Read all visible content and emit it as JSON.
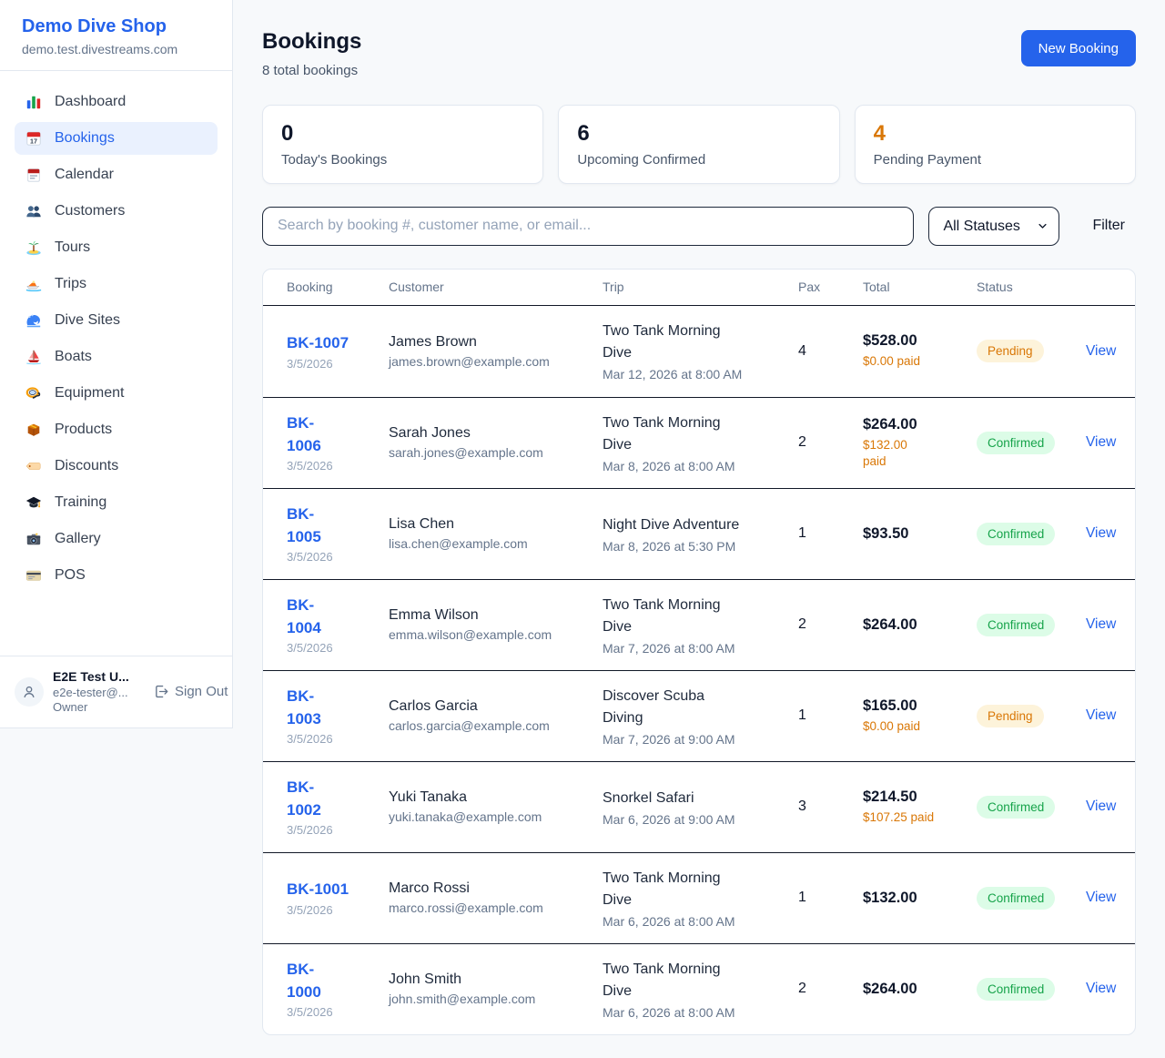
{
  "sidebar": {
    "brand": {
      "name": "Demo Dive Shop",
      "domain": "demo.test.divestreams.com"
    },
    "nav": [
      {
        "label": "Dashboard",
        "icon": "bar-chart",
        "active": false
      },
      {
        "label": "Bookings",
        "icon": "calendar",
        "active": true
      },
      {
        "label": "Calendar",
        "icon": "calendar-pad",
        "active": false
      },
      {
        "label": "Customers",
        "icon": "users",
        "active": false
      },
      {
        "label": "Tours",
        "icon": "island",
        "active": false
      },
      {
        "label": "Trips",
        "icon": "speedboat",
        "active": false
      },
      {
        "label": "Dive Sites",
        "icon": "wave",
        "active": false
      },
      {
        "label": "Boats",
        "icon": "sailboat",
        "active": false
      },
      {
        "label": "Equipment",
        "icon": "diving-mask",
        "active": false
      },
      {
        "label": "Products",
        "icon": "package",
        "active": false
      },
      {
        "label": "Discounts",
        "icon": "tag",
        "active": false
      },
      {
        "label": "Training",
        "icon": "graduation-cap",
        "active": false
      },
      {
        "label": "Gallery",
        "icon": "camera",
        "active": false
      },
      {
        "label": "POS",
        "icon": "credit-card",
        "active": false
      }
    ],
    "user": {
      "name": "E2E Test U...",
      "email": "e2e-tester@...",
      "role": "Owner",
      "sign_out_label": "Sign Out"
    }
  },
  "header": {
    "title": "Bookings",
    "subtitle": "8 total bookings",
    "new_booking_label": "New Booking"
  },
  "stats": [
    {
      "value": "0",
      "label": "Today's Bookings",
      "accent": false
    },
    {
      "value": "6",
      "label": "Upcoming Confirmed",
      "accent": false
    },
    {
      "value": "4",
      "label": "Pending Payment",
      "accent": true
    }
  ],
  "filters": {
    "search_placeholder": "Search by booking #, customer name, or email...",
    "status_selected": "All Statuses",
    "filter_label": "Filter"
  },
  "table": {
    "columns": [
      "Booking",
      "Customer",
      "Trip",
      "Pax",
      "Total",
      "Status"
    ],
    "view_label": "View",
    "rows": [
      {
        "number": "BK-1007",
        "number_display": "BK-1007",
        "date": "3/5/2026",
        "customer": "James Brown",
        "email": "james.brown@example.com",
        "trip": "Two Tank Morning Dive",
        "trip_display": "Two Tank Morning\nDive",
        "trip_date": "Mar 12, 2026 at 8:00 AM",
        "pax": "4",
        "total": "$528.00",
        "paid": "$0.00 paid",
        "paid_display": "$0.00 paid",
        "status": "Pending"
      },
      {
        "number": "BK-1006",
        "number_display": "BK-\n1006",
        "date": "3/5/2026",
        "customer": "Sarah Jones",
        "email": "sarah.jones@example.com",
        "trip": "Two Tank Morning Dive",
        "trip_display": "Two Tank Morning\nDive",
        "trip_date": "Mar 8, 2026 at 8:00 AM",
        "pax": "2",
        "total": "$264.00",
        "paid": "$132.00 paid",
        "paid_display": "$132.00\npaid",
        "status": "Confirmed"
      },
      {
        "number": "BK-1005",
        "number_display": "BK-\n1005",
        "date": "3/5/2026",
        "customer": "Lisa Chen",
        "email": "lisa.chen@example.com",
        "trip": "Night Dive Adventure",
        "trip_display": "Night Dive Adventure",
        "trip_date": "Mar 8, 2026 at 5:30 PM",
        "pax": "1",
        "total": "$93.50",
        "paid": "",
        "paid_display": "",
        "status": "Confirmed"
      },
      {
        "number": "BK-1004",
        "number_display": "BK-\n1004",
        "date": "3/5/2026",
        "customer": "Emma Wilson",
        "email": "emma.wilson@example.com",
        "trip": "Two Tank Morning Dive",
        "trip_display": "Two Tank Morning\nDive",
        "trip_date": "Mar 7, 2026 at 8:00 AM",
        "pax": "2",
        "total": "$264.00",
        "paid": "",
        "paid_display": "",
        "status": "Confirmed"
      },
      {
        "number": "BK-1003",
        "number_display": "BK-\n1003",
        "date": "3/5/2026",
        "customer": "Carlos Garcia",
        "email": "carlos.garcia@example.com",
        "trip": "Discover Scuba Diving",
        "trip_display": "Discover Scuba\nDiving",
        "trip_date": "Mar 7, 2026 at 9:00 AM",
        "pax": "1",
        "total": "$165.00",
        "paid": "$0.00 paid",
        "paid_display": "$0.00 paid",
        "status": "Pending"
      },
      {
        "number": "BK-1002",
        "number_display": "BK-\n1002",
        "date": "3/5/2026",
        "customer": "Yuki Tanaka",
        "email": "yuki.tanaka@example.com",
        "trip": "Snorkel Safari",
        "trip_display": "Snorkel Safari",
        "trip_date": "Mar 6, 2026 at 9:00 AM",
        "pax": "3",
        "total": "$214.50",
        "paid": "$107.25 paid",
        "paid_display": "$107.25 paid",
        "status": "Confirmed"
      },
      {
        "number": "BK-1001",
        "number_display": "BK-1001",
        "date": "3/5/2026",
        "customer": "Marco Rossi",
        "email": "marco.rossi@example.com",
        "trip": "Two Tank Morning Dive",
        "trip_display": "Two Tank Morning\nDive",
        "trip_date": "Mar 6, 2026 at 8:00 AM",
        "pax": "1",
        "total": "$132.00",
        "paid": "",
        "paid_display": "",
        "status": "Confirmed"
      },
      {
        "number": "BK-1000",
        "number_display": "BK-\n1000",
        "date": "3/5/2026",
        "customer": "John Smith",
        "email": "john.smith@example.com",
        "trip": "Two Tank Morning Dive",
        "trip_display": "Two Tank Morning\nDive",
        "trip_date": "Mar 6, 2026 at 8:00 AM",
        "pax": "2",
        "total": "$264.00",
        "paid": "",
        "paid_display": "",
        "status": "Confirmed"
      }
    ]
  },
  "colors": {
    "accent_blue": "#2563eb",
    "pending_text": "#d97706",
    "pending_bg": "#fdf3da",
    "confirmed_text": "#16a34a",
    "confirmed_bg": "#dcfce7",
    "paid_orange": "#d97706",
    "row_divider": "#111827"
  }
}
